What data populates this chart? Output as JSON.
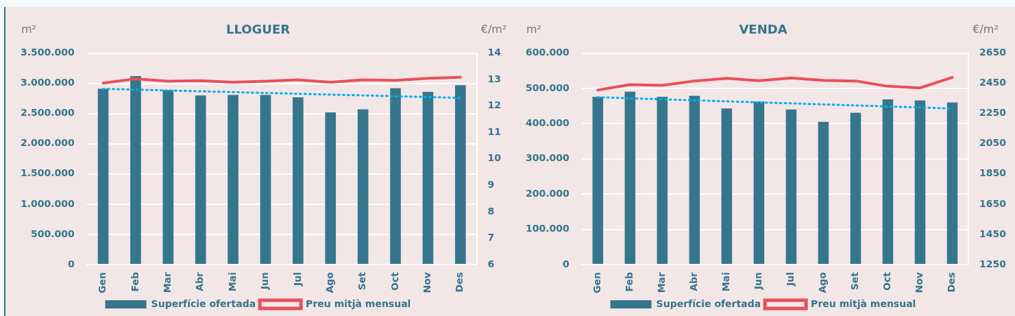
{
  "chart_data": [
    {
      "type": "bar",
      "title": "LLOGUER",
      "ylabel": "m²",
      "y2label": "€/m²",
      "categories": [
        "Gen",
        "Feb",
        "Mar",
        "Abr",
        "Mai",
        "Jun",
        "Jul",
        "Ago",
        "Set",
        "Oct",
        "Nov",
        "Des"
      ],
      "series": [
        {
          "name": "Superfície ofertada",
          "color": "#35768c",
          "values": [
            2910000,
            3120000,
            2890000,
            2800000,
            2810000,
            2810000,
            2770000,
            2520000,
            2570000,
            2920000,
            2860000,
            2970000
          ]
        },
        {
          "name": "Preu mitjà mensual",
          "type": "line",
          "axis": "y2",
          "color": "#e8505b",
          "values": [
            12.87,
            13.03,
            12.94,
            12.96,
            12.9,
            12.94,
            12.99,
            12.9,
            12.99,
            12.97,
            13.05,
            13.09
          ]
        },
        {
          "type": "line",
          "line_style": "dotted",
          "color": "#00b0f0",
          "x": [
            "Gen",
            "Des"
          ],
          "values": [
            2910000,
            2760000
          ]
        }
      ],
      "ylim": [
        0,
        3500000
      ],
      "yticks": [
        {
          "value": 0,
          "label": "0"
        },
        {
          "value": 500000,
          "label": "500.000"
        },
        {
          "value": 1000000,
          "label": "1.000.000"
        },
        {
          "value": 1500000,
          "label": "1.500.000"
        },
        {
          "value": 2000000,
          "label": "2.000.000"
        },
        {
          "value": 2500000,
          "label": "2.500.000"
        },
        {
          "value": 3000000,
          "label": "3.000.000"
        },
        {
          "value": 3500000,
          "label": "3.500.000"
        }
      ],
      "y2lim": [
        6,
        14
      ],
      "y2ticks": [
        6,
        7,
        8,
        9,
        10,
        11,
        12,
        13,
        14
      ],
      "grid": "y",
      "legend": "bottom"
    },
    {
      "type": "bar",
      "title": "VENDA",
      "ylabel": "m²",
      "y2label": "€/m²",
      "categories": [
        "Gen",
        "Feb",
        "Mar",
        "Abr",
        "Mai",
        "Jun",
        "Jul",
        "Ago",
        "Set",
        "Oct",
        "Nov",
        "Des"
      ],
      "series": [
        {
          "name": "Superfície ofertada",
          "color": "#35768c",
          "values": [
            476000,
            491000,
            476000,
            479000,
            443000,
            463000,
            440000,
            405000,
            431000,
            469000,
            466000,
            460000
          ]
        },
        {
          "name": "Preu mitjà mensual",
          "type": "line",
          "axis": "y2",
          "color": "#e8505b",
          "values": [
            2406,
            2442,
            2437,
            2466,
            2484,
            2468,
            2486,
            2470,
            2466,
            2431,
            2420,
            2490
          ]
        },
        {
          "type": "line",
          "line_style": "dotted",
          "color": "#00b0f0",
          "x": [
            "Gen",
            "Des"
          ],
          "values": [
            475000,
            443000
          ]
        }
      ],
      "ylim": [
        0,
        600000
      ],
      "yticks": [
        {
          "value": 0,
          "label": "0"
        },
        {
          "value": 100000,
          "label": "100.000"
        },
        {
          "value": 200000,
          "label": "200.000"
        },
        {
          "value": 300000,
          "label": "300.000"
        },
        {
          "value": 400000,
          "label": "400.000"
        },
        {
          "value": 500000,
          "label": "500.000"
        },
        {
          "value": 600000,
          "label": "600.000"
        }
      ],
      "y2lim": [
        1250,
        2650
      ],
      "y2ticks": [
        1250,
        1450,
        1650,
        1850,
        2050,
        2250,
        2450,
        2650
      ],
      "grid": "y",
      "legend": "bottom"
    }
  ]
}
